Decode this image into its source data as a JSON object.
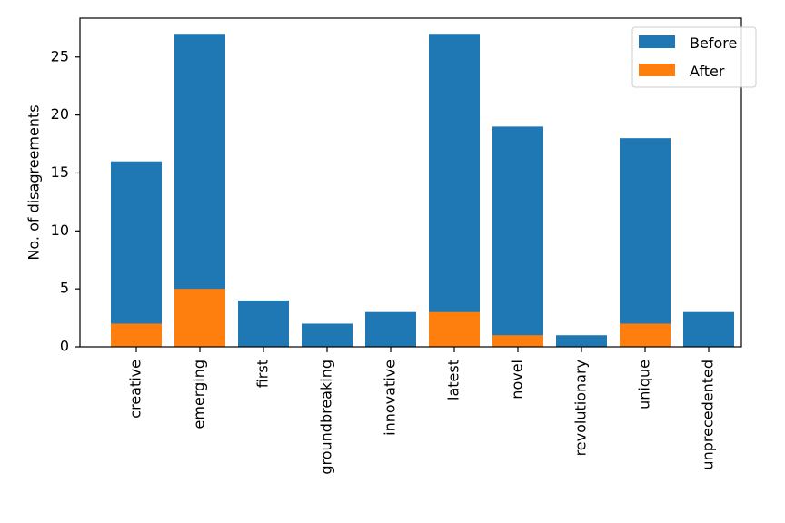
{
  "chart_data": {
    "type": "bar",
    "stacking": "overlay",
    "title": "",
    "xlabel": "",
    "ylabel": "No. of disagreements",
    "categories": [
      "creative",
      "emerging",
      "first",
      "groundbreaking",
      "innovative",
      "latest",
      "novel",
      "revolutionary",
      "unique",
      "unprecedented"
    ],
    "series": [
      {
        "name": "Before",
        "color": "#1f77b4",
        "values": [
          16,
          27,
          4,
          2,
          3,
          27,
          19,
          1,
          18,
          3
        ]
      },
      {
        "name": "After",
        "color": "#ff7f0e",
        "values": [
          2,
          5,
          0,
          0,
          0,
          3,
          1,
          0,
          2,
          0
        ]
      }
    ],
    "ylim": [
      0,
      28.35
    ],
    "yticks": [
      0,
      5,
      10,
      15,
      20,
      25
    ],
    "grid": false,
    "legend_position": "top-right",
    "xtick_rotation": "vertical"
  }
}
